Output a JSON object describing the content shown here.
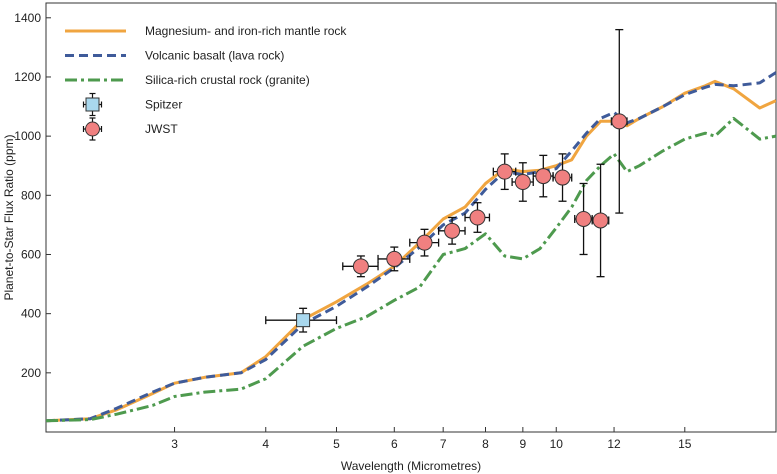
{
  "chart_data": {
    "type": "line",
    "title": "",
    "xlabel": "Wavelength (Micrometres)",
    "ylabel": "Planet-to-Star Flux Ratio (ppm)",
    "x_scale": "log",
    "xlim": [
      2.0,
      20.0
    ],
    "ylim": [
      0,
      1450
    ],
    "x_ticks": [
      3,
      4,
      5,
      6,
      7,
      8,
      9,
      10,
      12,
      15
    ],
    "x_tick_labels": [
      "3",
      "4",
      "5",
      "6",
      "7",
      "8",
      "9",
      "10",
      "12",
      "15"
    ],
    "y_ticks": [
      200,
      400,
      600,
      800,
      1000,
      1200,
      1400
    ],
    "y_tick_labels": [
      "200",
      "400",
      "600",
      "800",
      "1000",
      "1200",
      "1400"
    ],
    "grid": false,
    "legend_position": "top-left",
    "series": [
      {
        "name": "Magnesium- and iron-rich mantle rock",
        "style": "solid",
        "color": "#F0A540",
        "x": [
          2.0,
          2.3,
          2.5,
          2.8,
          3.0,
          3.3,
          3.7,
          4.0,
          4.5,
          5.0,
          5.5,
          6.0,
          6.5,
          7.0,
          7.5,
          8.0,
          8.5,
          9.0,
          9.5,
          10.0,
          10.5,
          11.0,
          11.5,
          12.0,
          12.5,
          13.0,
          14.0,
          15.0,
          16.0,
          16.5,
          17.5,
          19.0,
          20.0
        ],
        "y": [
          38,
          45,
          75,
          130,
          165,
          185,
          200,
          255,
          380,
          440,
          500,
          560,
          640,
          720,
          760,
          840,
          890,
          880,
          885,
          900,
          920,
          1000,
          1050,
          1050,
          1035,
          1060,
          1100,
          1145,
          1170,
          1185,
          1160,
          1095,
          1120
        ]
      },
      {
        "name": "Volcanic basalt (lava rock)",
        "style": "dashed",
        "color": "#3F5B9A",
        "x": [
          2.0,
          2.3,
          2.5,
          2.8,
          3.0,
          3.3,
          3.7,
          4.0,
          4.5,
          5.0,
          5.5,
          6.0,
          6.5,
          7.0,
          7.5,
          8.0,
          8.5,
          9.0,
          9.5,
          10.0,
          10.5,
          11.0,
          11.5,
          12.0,
          12.5,
          13.0,
          14.0,
          15.0,
          16.0,
          16.5,
          17.5,
          19.0,
          20.0
        ],
        "y": [
          38,
          45,
          80,
          135,
          165,
          185,
          200,
          245,
          365,
          425,
          490,
          555,
          625,
          700,
          740,
          820,
          880,
          870,
          880,
          890,
          950,
          1010,
          1060,
          1080,
          1045,
          1060,
          1100,
          1140,
          1165,
          1175,
          1170,
          1180,
          1215
        ]
      },
      {
        "name": "Silica-rich crustal rock (granite)",
        "style": "dashdot",
        "color": "#4E9A4E",
        "x": [
          2.0,
          2.3,
          2.5,
          2.8,
          3.0,
          3.3,
          3.7,
          4.0,
          4.5,
          5.0,
          5.5,
          6.0,
          6.5,
          7.0,
          7.5,
          8.0,
          8.5,
          9.0,
          9.5,
          10.0,
          10.5,
          11.0,
          11.5,
          12.0,
          12.5,
          13.0,
          14.0,
          15.0,
          16.0,
          16.5,
          17.5,
          19.0,
          20.0
        ],
        "y": [
          38,
          42,
          60,
          90,
          120,
          135,
          145,
          180,
          290,
          350,
          390,
          445,
          490,
          600,
          620,
          670,
          595,
          585,
          620,
          690,
          760,
          850,
          900,
          940,
          880,
          900,
          950,
          990,
          1010,
          1000,
          1060,
          990,
          1000
        ]
      },
      {
        "name": "Spitzer",
        "style": "marker-square",
        "color": "#A9D8EE",
        "x": [
          4.5
        ],
        "y": [
          378
        ],
        "xerr_low": [
          0.5
        ],
        "xerr_high": [
          0.5
        ],
        "yerr": [
          40
        ]
      },
      {
        "name": "JWST",
        "style": "marker-circle",
        "color": "#F08080",
        "x": [
          5.4,
          6.0,
          6.6,
          7.2,
          7.8,
          8.5,
          9.0,
          9.6,
          10.2,
          10.9,
          11.5,
          12.2
        ],
        "y": [
          560,
          585,
          640,
          680,
          725,
          880,
          845,
          865,
          860,
          720,
          715,
          1050
        ],
        "xerr": [
          0.3,
          0.3,
          0.3,
          0.3,
          0.3,
          0.3,
          0.3,
          0.3,
          0.3,
          0.3,
          0.3,
          0.3
        ],
        "yerr": [
          35,
          40,
          45,
          45,
          50,
          60,
          65,
          70,
          80,
          120,
          190,
          310
        ]
      }
    ]
  }
}
